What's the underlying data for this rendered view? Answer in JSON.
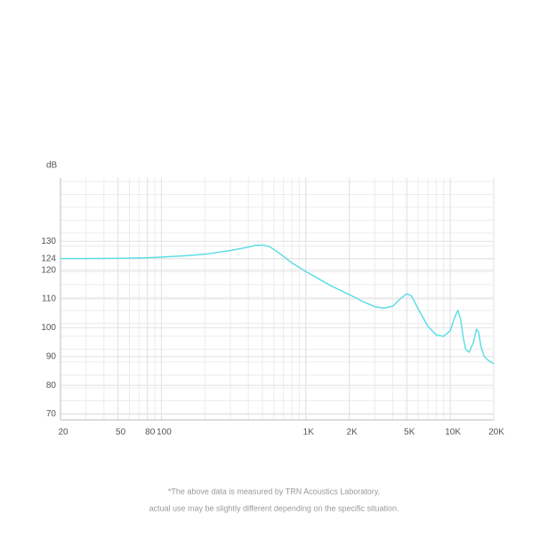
{
  "chart_data": {
    "type": "line",
    "y_label": "dB",
    "x": [
      20,
      30,
      50,
      80,
      100,
      150,
      200,
      300,
      400,
      450,
      500,
      560,
      650,
      800,
      1000,
      1500,
      2000,
      2500,
      3000,
      3500,
      4000,
      4500,
      5000,
      5400,
      6000,
      7000,
      8000,
      9000,
      10000,
      10800,
      11300,
      11800,
      12300,
      12800,
      13500,
      14500,
      15200,
      15700,
      16300,
      17200,
      18500,
      20000
    ],
    "series": [
      {
        "color": "#5fdde6",
        "values": [
          124,
          124,
          124.1,
          124.3,
          124.5,
          125,
          125.5,
          126.8,
          128,
          128.6,
          128.7,
          128.2,
          126,
          122.5,
          119.5,
          114.5,
          111.5,
          109,
          107.3,
          106.8,
          107.5,
          110,
          111.8,
          111,
          106.5,
          100.5,
          97.5,
          97,
          99,
          104,
          106,
          103,
          96.5,
          92.5,
          91.5,
          95,
          99.5,
          98.5,
          93.5,
          90,
          88.5,
          87.5
        ]
      }
    ],
    "x_log": true,
    "xlim": [
      20,
      20000
    ],
    "xticks": [
      20,
      50,
      80,
      100,
      {
        "value": 1000,
        "label": "1K"
      },
      {
        "value": 2000,
        "label": "2K"
      },
      {
        "value": 5000,
        "label": "5K"
      },
      {
        "value": 10000,
        "label": "10K"
      },
      {
        "value": 20000,
        "label": "20K"
      }
    ],
    "ylim": [
      68,
      152
    ],
    "yticks": [
      70,
      80,
      90,
      100,
      110,
      120,
      124,
      130
    ],
    "grid": true,
    "footnote": [
      "*The above data is measured by TRN Acoustics Laboratory,",
      "actual use may be slightly different depending on the specific situation."
    ]
  }
}
